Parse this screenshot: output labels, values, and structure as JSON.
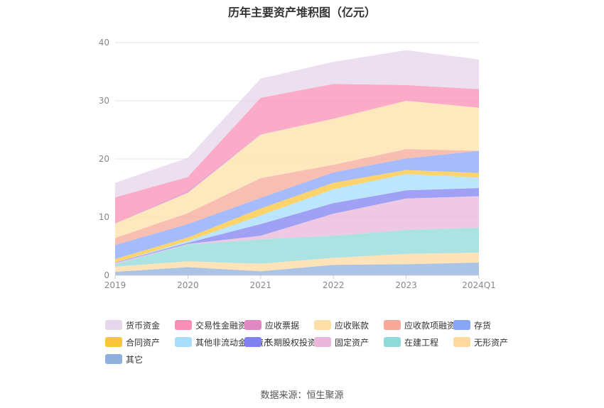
{
  "chart_data": {
    "type": "area",
    "stacked": true,
    "title": "历年主要资产堆积图（亿元）",
    "categories": [
      "2019",
      "2020",
      "2021",
      "2022",
      "2023",
      "2024Q1"
    ],
    "ylim": [
      0,
      40
    ],
    "yticks": [
      0,
      10,
      20,
      30,
      40
    ],
    "grid": true,
    "legend_position": "bottom",
    "series": [
      {
        "name": "其它",
        "color": "#8fb0dc",
        "values": [
          0.6,
          1.4,
          0.7,
          1.8,
          1.9,
          2.2
        ]
      },
      {
        "name": "无形资产",
        "color": "#fdd9a0",
        "values": [
          0.9,
          1.0,
          1.3,
          1.2,
          1.8,
          1.7
        ]
      },
      {
        "name": "在建工程",
        "color": "#8fd9d9",
        "values": [
          0.4,
          2.9,
          4.2,
          3.8,
          4.1,
          4.3
        ]
      },
      {
        "name": "固定资产",
        "color": "#eab7da",
        "values": [
          0.2,
          0.1,
          0.6,
          3.8,
          5.4,
          5.4
        ]
      },
      {
        "name": "长期股权投资",
        "color": "#8080f0",
        "values": [
          0.1,
          0.2,
          2.0,
          1.8,
          1.4,
          1.4
        ]
      },
      {
        "name": "其他非流动金融资产",
        "color": "#a6defc",
        "values": [
          0.0,
          0.3,
          1.5,
          2.4,
          2.8,
          1.8
        ]
      },
      {
        "name": "合同资产",
        "color": "#fbc53a",
        "values": [
          0.6,
          0.6,
          1.2,
          1.1,
          0.7,
          0.8
        ]
      },
      {
        "name": "存货",
        "color": "#88a5f8",
        "values": [
          2.4,
          2.3,
          1.8,
          1.8,
          2.0,
          3.8
        ]
      },
      {
        "name": "应收款项融资",
        "color": "#f7a898",
        "values": [
          1.2,
          1.9,
          3.4,
          1.3,
          1.6,
          0.0
        ]
      },
      {
        "name": "应收账款",
        "color": "#fde0a8",
        "values": [
          2.5,
          3.5,
          7.5,
          7.9,
          8.3,
          7.4
        ]
      },
      {
        "name": "应收票据",
        "color": "#e088c4",
        "values": [
          0.0,
          0.4,
          0.1,
          0.0,
          0.0,
          0.0
        ]
      },
      {
        "name": "交易性金融资产",
        "color": "#f98fb4",
        "values": [
          4.5,
          2.3,
          6.2,
          6.0,
          2.7,
          3.2
        ]
      },
      {
        "name": "货币资金",
        "color": "#e5d6eb",
        "values": [
          2.5,
          3.3,
          3.3,
          3.8,
          6.0,
          5.1
        ]
      }
    ]
  },
  "legend": {
    "items": [
      "货币资金",
      "交易性金融资产",
      "应收票据",
      "应收账款",
      "应收款项融资",
      "存货",
      "合同资产",
      "其他非流动金融资产",
      "长期股权投资",
      "固定资产",
      "在建工程",
      "无形资产",
      "其它"
    ]
  },
  "footer": {
    "source": "数据来源：恒生聚源"
  }
}
